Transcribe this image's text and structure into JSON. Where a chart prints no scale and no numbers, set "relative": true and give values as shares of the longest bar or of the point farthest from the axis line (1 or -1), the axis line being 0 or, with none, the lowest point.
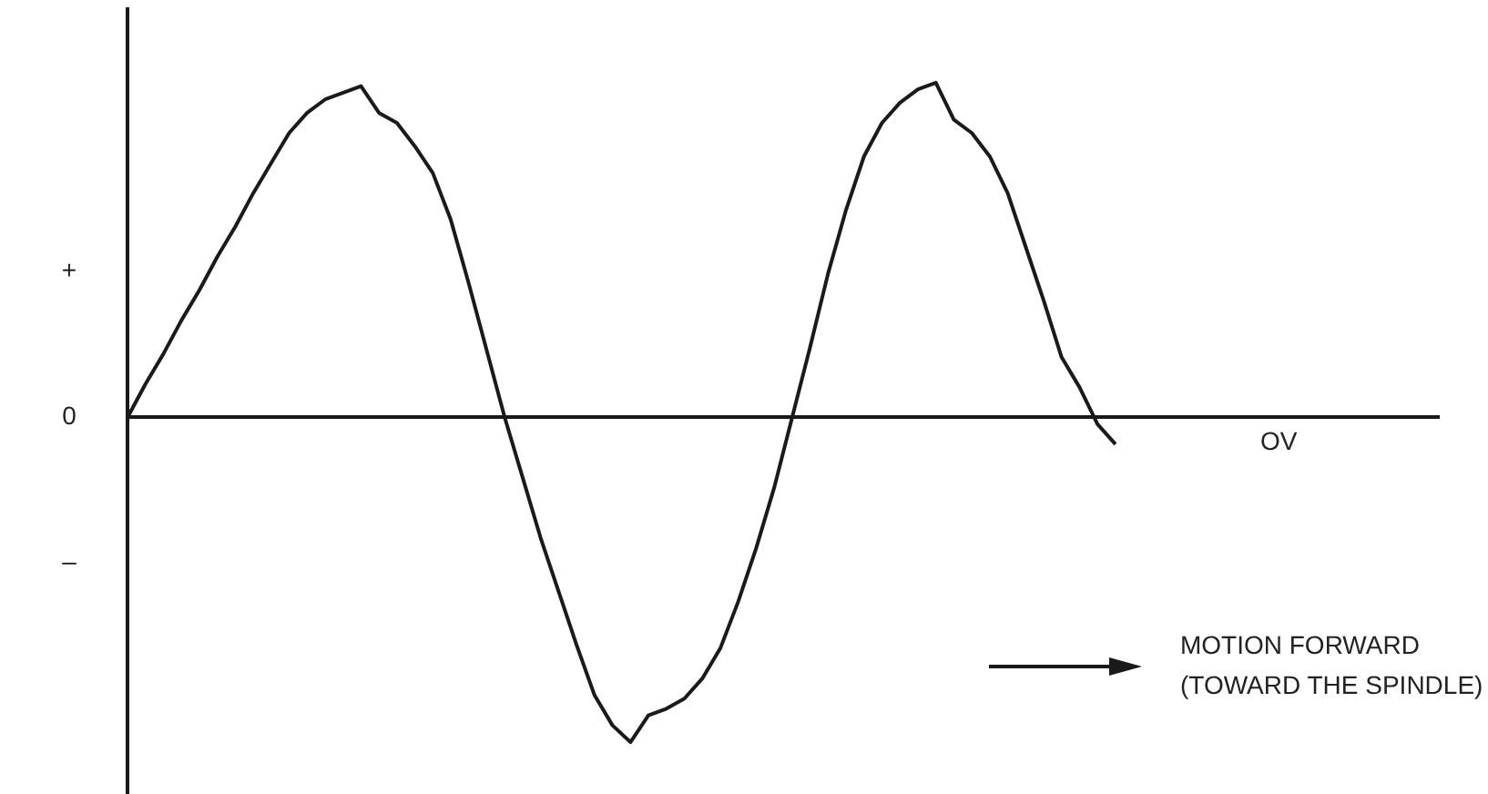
{
  "chart_data": {
    "type": "line",
    "relative": true,
    "marker": "none",
    "color": "#1a1a1a",
    "categories": [
      null,
      null,
      null,
      null,
      null,
      null,
      null,
      null,
      null,
      null,
      null,
      null,
      null,
      null,
      null,
      null,
      null,
      null,
      null,
      null,
      null,
      null,
      null,
      null,
      null,
      null,
      null,
      null,
      null,
      null,
      null,
      null,
      null,
      null,
      null,
      null,
      null,
      null,
      null,
      null,
      null,
      null,
      null,
      null,
      null,
      null,
      null,
      null,
      null,
      null,
      null,
      null,
      null,
      null,
      null,
      null,
      null,
      null,
      null,
      null,
      null,
      null,
      null,
      null,
      null,
      null,
      null,
      null,
      null,
      null,
      null,
      null,
      null,
      null
    ],
    "values": [
      0,
      0.1,
      0.19,
      0.29,
      0.38,
      0.48,
      0.57,
      0.67,
      0.76,
      0.85,
      0.91,
      0.95,
      0.97,
      0.99,
      0.91,
      0.88,
      0.81,
      0.73,
      0.59,
      0.4,
      0.2,
      0,
      -0.18,
      -0.36,
      -0.52,
      -0.68,
      -0.83,
      -0.92,
      -0.97,
      -0.89,
      -0.87,
      -0.84,
      -0.78,
      -0.69,
      -0.55,
      -0.39,
      -0.21,
      0,
      0.21,
      0.43,
      0.62,
      0.78,
      0.88,
      0.94,
      0.98,
      1,
      0.89,
      0.85,
      0.78,
      0.67,
      0.51,
      0.35,
      0.18,
      0.09,
      -0.02,
      -0.08,
      null,
      null,
      null,
      null,
      null,
      null,
      null,
      null,
      null,
      null,
      null,
      null,
      null,
      null,
      null,
      null,
      null,
      null
    ],
    "annotations": [
      "+",
      "0",
      "–",
      "OV",
      "MOTION FORWARD\n(TOWARD THE SPINDLE)"
    ]
  }
}
